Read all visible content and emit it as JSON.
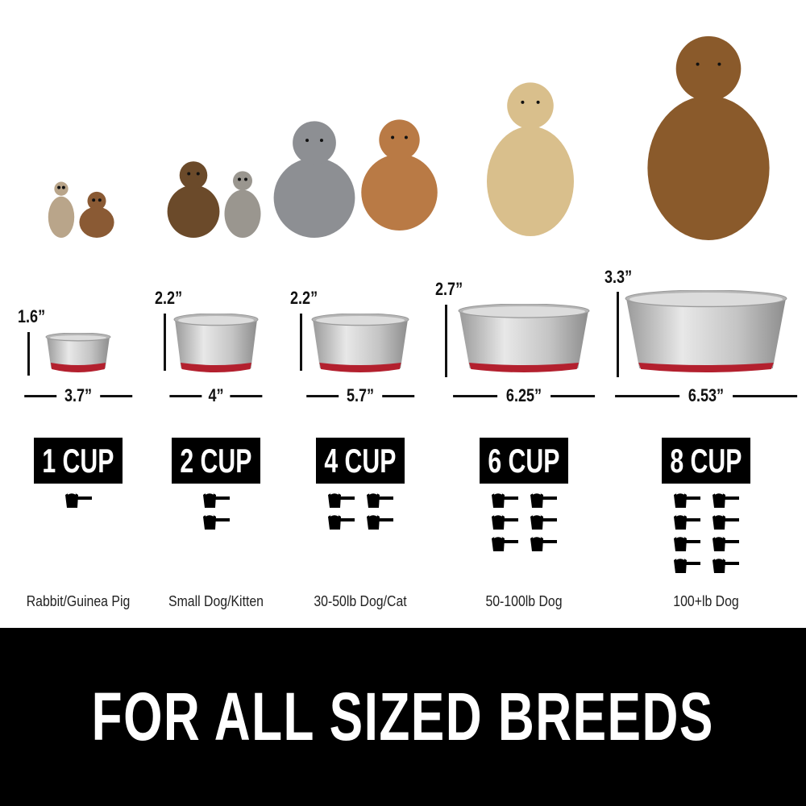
{
  "colors": {
    "band": "#000000",
    "bowl_base": "#b3202e",
    "steel": "#c9c9c9"
  },
  "sizes": [
    {
      "height": "1.6”",
      "width": "3.7”",
      "capacity": "1 CUP",
      "cups": 1,
      "caption": "Rabbit/Guinea Pig"
    },
    {
      "height": "2.2”",
      "width": "4”",
      "capacity": "2 CUP",
      "cups": 2,
      "caption": "Small Dog/Kitten"
    },
    {
      "height": "2.2”",
      "width": "5.7”",
      "capacity": "4 CUP",
      "cups": 4,
      "caption": "30-50lb Dog/Cat"
    },
    {
      "height": "2.7”",
      "width": "6.25”",
      "capacity": "6 CUP",
      "cups": 6,
      "caption": "50-100lb Dog"
    },
    {
      "height": "3.3”",
      "width": "6.53”",
      "capacity": "8 CUP",
      "cups": 8,
      "caption": "100+lb Dog"
    }
  ],
  "banner": {
    "text": "FOR ALL SIZED BREEDS"
  }
}
